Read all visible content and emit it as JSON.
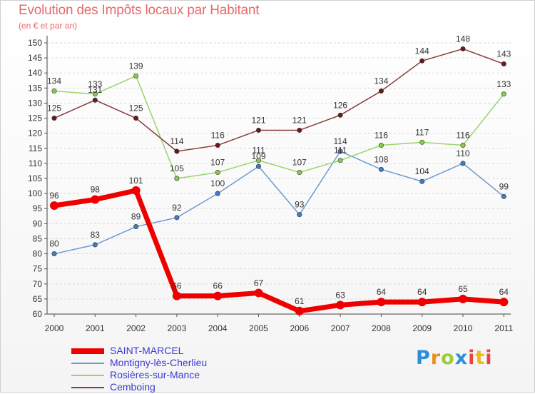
{
  "title": "Evolution des Impôts locaux par Habitant",
  "subtitle": "(en € et par an)",
  "logo": {
    "p": "P",
    "r": "r",
    "o": "o",
    "x": "x",
    "i": "i",
    "t": "t",
    "i2": "i"
  },
  "chart_data": {
    "type": "line",
    "title": "Evolution des Impôts locaux par Habitant",
    "subtitle": "(en € et par an)",
    "categories": [
      "2000",
      "2001",
      "2002",
      "2003",
      "2004",
      "2005",
      "2006",
      "2007",
      "2008",
      "2009",
      "2010",
      "2011"
    ],
    "ylim": [
      60,
      150
    ],
    "yticks": [
      60,
      65,
      70,
      75,
      80,
      85,
      90,
      95,
      100,
      105,
      110,
      115,
      120,
      125,
      130,
      135,
      140,
      145,
      150
    ],
    "legend_position": "bottom-left",
    "series": [
      {
        "name": "SAINT-MARCEL",
        "color": "#ee0000",
        "marker": "#ee0000",
        "width": 7,
        "values": [
          96,
          98,
          101,
          66,
          66,
          67,
          61,
          63,
          64,
          64,
          65,
          64
        ]
      },
      {
        "name": "Montigny-lès-Cherlieu",
        "color": "#6c9bd2",
        "marker": "#3f7cc4",
        "width": 1.5,
        "values": [
          80,
          83,
          89,
          92,
          100,
          109,
          93,
          114,
          108,
          104,
          110,
          99
        ]
      },
      {
        "name": "Rosières-sur-Mance",
        "color": "#9ad36a",
        "marker": "#86cd45",
        "width": 1.5,
        "values": [
          134,
          133,
          139,
          105,
          107,
          111,
          107,
          111,
          116,
          117,
          116,
          133
        ]
      },
      {
        "name": "Cemboing",
        "color": "#8a3a3a",
        "marker": "#6b1a1a",
        "width": 1.5,
        "values": [
          125,
          131,
          125,
          114,
          116,
          121,
          121,
          126,
          134,
          144,
          148,
          143
        ]
      }
    ]
  }
}
